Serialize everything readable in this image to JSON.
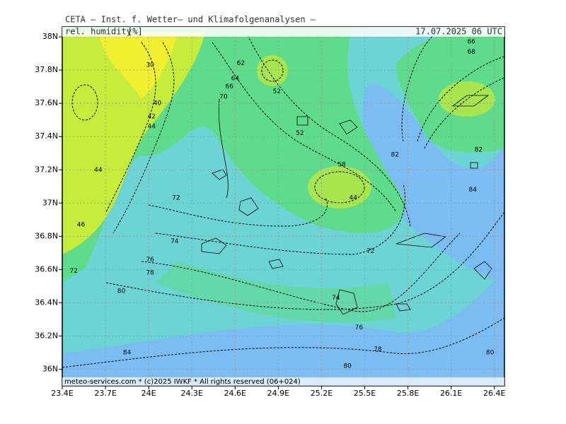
{
  "map": {
    "title": "CETA — Inst. f. Wetter— und Klimafolgenanalysen —",
    "variable": "rel. humidity",
    "unit": "[%]",
    "datetime": "17.07.2025 06 UTC",
    "footer": "meteo-services.com * (c)2025 IWKF * All rights reserved (06+024)",
    "lonlim": [
      23.4,
      26.47
    ],
    "latlim": [
      35.9,
      38.06
    ],
    "grid": true,
    "lonticks": [
      {
        "value": 23.4,
        "label": "23.4E"
      },
      {
        "value": 23.7,
        "label": "23.7E"
      },
      {
        "value": 24,
        "label": "24E"
      },
      {
        "value": 24.3,
        "label": "24.3E"
      },
      {
        "value": 24.6,
        "label": "24.6E"
      },
      {
        "value": 24.9,
        "label": "24.9E"
      },
      {
        "value": 25.2,
        "label": "25.2E"
      },
      {
        "value": 25.5,
        "label": "25.5E"
      },
      {
        "value": 25.8,
        "label": "25.8E"
      },
      {
        "value": 26.1,
        "label": "26.1E"
      },
      {
        "value": 26.4,
        "label": "26.4E"
      }
    ],
    "latticks": [
      {
        "value": 36,
        "label": "36N"
      },
      {
        "value": 36.2,
        "label": "36.2N"
      },
      {
        "value": 36.4,
        "label": "36.4N"
      },
      {
        "value": 36.6,
        "label": "36.6N"
      },
      {
        "value": 36.8,
        "label": "36.8N"
      },
      {
        "value": 37,
        "label": "37N"
      },
      {
        "value": 37.2,
        "label": "37.2N"
      },
      {
        "value": 37.4,
        "label": "37.4N"
      },
      {
        "value": 37.6,
        "label": "37.6N"
      },
      {
        "value": 37.8,
        "label": "37.8N"
      },
      {
        "value": 38,
        "label": "38N"
      }
    ],
    "contour_labels": [
      {
        "lon": 24.19,
        "lat": 37.03,
        "value": 72
      },
      {
        "lon": 24.18,
        "lat": 36.77,
        "value": 74
      },
      {
        "lon": 24.01,
        "lat": 36.66,
        "value": 76
      },
      {
        "lon": 24.01,
        "lat": 36.58,
        "value": 78
      },
      {
        "lon": 23.81,
        "lat": 36.47,
        "value": 80
      },
      {
        "lon": 23.85,
        "lat": 36.1,
        "value": 84
      },
      {
        "lon": 25.3,
        "lat": 36.43,
        "value": 74
      },
      {
        "lon": 25.46,
        "lat": 36.25,
        "value": 76
      },
      {
        "lon": 25.59,
        "lat": 36.12,
        "value": 78
      },
      {
        "lon": 25.38,
        "lat": 36.02,
        "value": 80
      },
      {
        "lon": 26.37,
        "lat": 36.1,
        "value": 80
      },
      {
        "lon": 25.71,
        "lat": 37.29,
        "value": 82
      },
      {
        "lon": 26.25,
        "lat": 37.08,
        "value": 84
      },
      {
        "lon": 26.29,
        "lat": 37.32,
        "value": 82
      },
      {
        "lon": 25.54,
        "lat": 36.71,
        "value": 72
      },
      {
        "lon": 24.89,
        "lat": 37.67,
        "value": 52
      },
      {
        "lon": 24.6,
        "lat": 37.75,
        "value": 64
      },
      {
        "lon": 24.64,
        "lat": 37.84,
        "value": 62
      },
      {
        "lon": 24.56,
        "lat": 37.7,
        "value": 66
      },
      {
        "lon": 24.52,
        "lat": 37.64,
        "value": 70
      },
      {
        "lon": 24.01,
        "lat": 37.83,
        "value": 30
      },
      {
        "lon": 24.06,
        "lat": 37.6,
        "value": 40
      },
      {
        "lon": 24.02,
        "lat": 37.52,
        "value": 42
      },
      {
        "lon": 24.02,
        "lat": 37.46,
        "value": 44
      },
      {
        "lon": 23.65,
        "lat": 37.2,
        "value": 44
      },
      {
        "lon": 23.53,
        "lat": 36.87,
        "value": 46
      },
      {
        "lon": 23.48,
        "lat": 36.59,
        "value": 72
      },
      {
        "lon": 25.05,
        "lat": 37.42,
        "value": 52
      },
      {
        "lon": 25.42,
        "lat": 37.03,
        "value": 44
      },
      {
        "lon": 26.24,
        "lat": 37.97,
        "value": 66
      },
      {
        "lon": 26.24,
        "lat": 37.91,
        "value": 68
      },
      {
        "lon": 25.34,
        "lat": 37.23,
        "value": 58
      }
    ]
  }
}
